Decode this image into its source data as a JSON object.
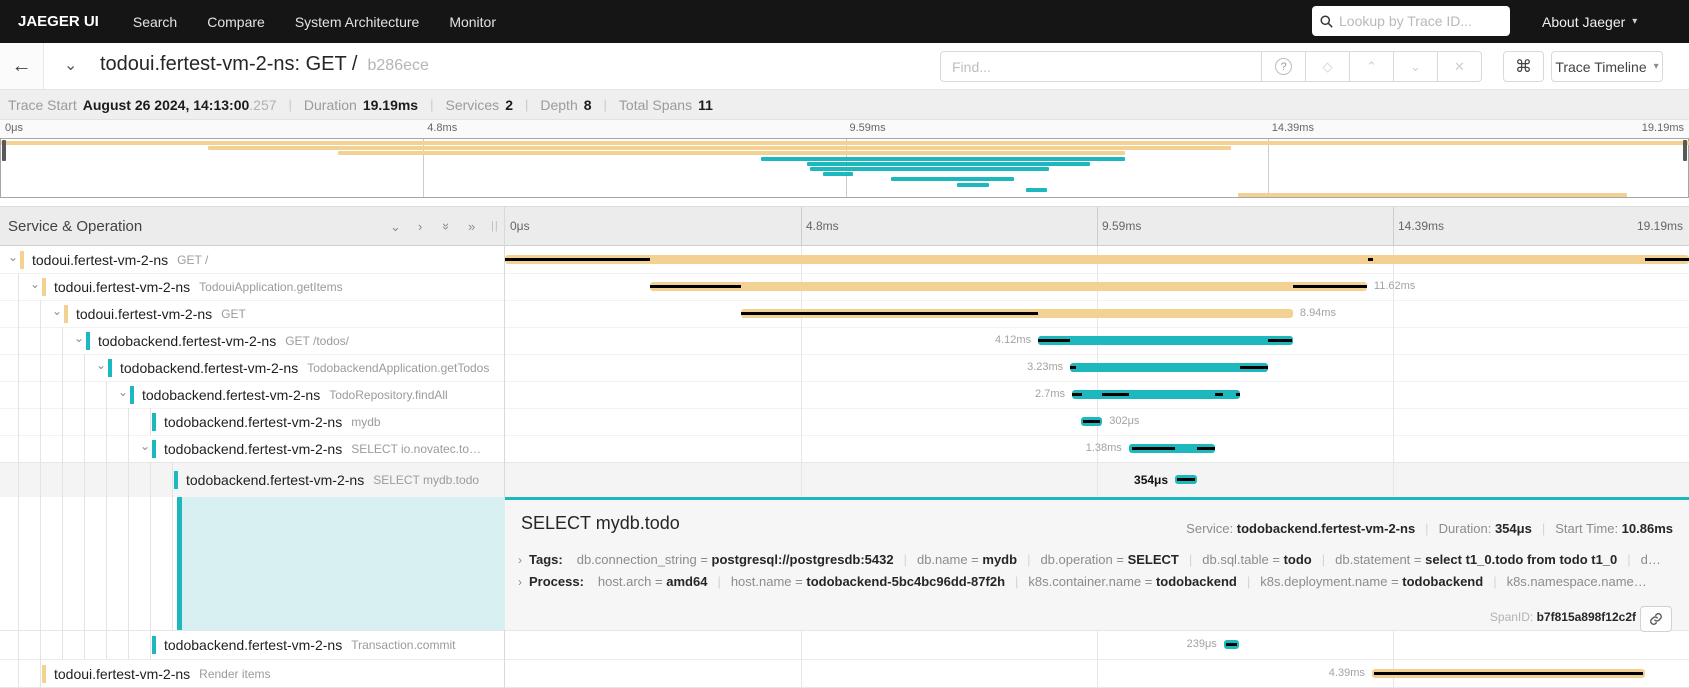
{
  "nav": {
    "brand": "JAEGER UI",
    "items": [
      "Search",
      "Compare",
      "System Architecture",
      "Monitor"
    ],
    "lookup_placeholder": "Lookup by Trace ID...",
    "about_label": "About Jaeger"
  },
  "trace_header": {
    "title": "todoui.fertest-vm-2-ns: GET /",
    "trace_id": "b286ece",
    "find_placeholder": "Find...",
    "view_selector_label": "Trace Timeline"
  },
  "summary": {
    "items": [
      {
        "label": "Trace Start",
        "value": "August 26 2024, 14:13:00",
        "suffix": ".257"
      },
      {
        "label": "Duration",
        "value": "19.19ms"
      },
      {
        "label": "Services",
        "value": "2"
      },
      {
        "label": "Depth",
        "value": "8"
      },
      {
        "label": "Total Spans",
        "value": "11"
      }
    ]
  },
  "timeline": {
    "header_label": "Service & Operation",
    "ticks": [
      "0μs",
      "4.8ms",
      "9.59ms",
      "14.39ms",
      "19.19ms"
    ],
    "duration_ms": 19.19
  },
  "colors": {
    "tan": "#F2D193",
    "teal": "#1CB8BE",
    "critical_path": "#000000",
    "selected_highlight": "#D8F0F1"
  },
  "spans": [
    {
      "service": "todoui.fertest-vm-2-ns",
      "operation": "GET /",
      "level": 0,
      "color": "tan",
      "expandable": true,
      "start_ms": 0,
      "end_ms": 19.19,
      "label": "",
      "label_side": "none",
      "selected": false,
      "critical": [
        [
          0,
          2.35
        ],
        [
          13.99,
          14.07
        ],
        [
          18.47,
          19.19
        ]
      ]
    },
    {
      "service": "todoui.fertest-vm-2-ns",
      "operation": "TodouiApplication.getItems",
      "level": 1,
      "color": "tan",
      "expandable": true,
      "start_ms": 2.35,
      "end_ms": 13.97,
      "label": "11.62ms",
      "label_side": "right",
      "selected": false,
      "critical": [
        [
          2.35,
          3.83
        ],
        [
          12.77,
          13.97
        ]
      ]
    },
    {
      "service": "todoui.fertest-vm-2-ns",
      "operation": "GET",
      "level": 2,
      "color": "tan",
      "expandable": true,
      "start_ms": 3.83,
      "end_ms": 12.77,
      "label": "8.94ms",
      "label_side": "right",
      "selected": false,
      "critical": [
        [
          3.83,
          8.64
        ]
      ]
    },
    {
      "service": "todobackend.fertest-vm-2-ns",
      "operation": "GET /todos/",
      "level": 3,
      "color": "teal",
      "expandable": true,
      "start_ms": 8.64,
      "end_ms": 12.77,
      "label": "4.12ms",
      "label_side": "left",
      "selected": false,
      "critical": [
        [
          8.64,
          9.16
        ],
        [
          12.37,
          12.76
        ]
      ]
    },
    {
      "service": "todobackend.fertest-vm-2-ns",
      "operation": "TodobackendApplication.getTodos",
      "level": 4,
      "color": "teal",
      "expandable": true,
      "start_ms": 9.16,
      "end_ms": 12.37,
      "label": "3.23ms",
      "label_side": "left",
      "selected": false,
      "critical": [
        [
          9.16,
          9.25
        ],
        [
          11.91,
          12.37
        ]
      ]
    },
    {
      "service": "todobackend.fertest-vm-2-ns",
      "operation": "TodoRepository.findAll",
      "level": 5,
      "color": "teal",
      "expandable": true,
      "start_ms": 9.19,
      "end_ms": 11.91,
      "label": "2.7ms",
      "label_side": "left",
      "selected": false,
      "critical": [
        [
          9.19,
          9.36
        ],
        [
          9.68,
          10.11
        ],
        [
          11.51,
          11.63
        ],
        [
          11.85,
          11.91
        ]
      ]
    },
    {
      "service": "todobackend.fertest-vm-2-ns",
      "operation": "mydb",
      "level": 6,
      "color": "teal",
      "expandable": false,
      "start_ms": 9.34,
      "end_ms": 9.68,
      "label": "302μs",
      "label_side": "right",
      "selected": false,
      "critical": [
        [
          9.37,
          9.65
        ]
      ]
    },
    {
      "service": "todobackend.fertest-vm-2-ns",
      "operation": "SELECT io.novatec.to…",
      "level": 6,
      "color": "teal",
      "expandable": true,
      "start_ms": 10.11,
      "end_ms": 11.51,
      "label": "1.38ms",
      "label_side": "left",
      "selected": false,
      "critical": [
        [
          10.16,
          10.86
        ],
        [
          11.22,
          11.51
        ]
      ]
    },
    {
      "service": "todobackend.fertest-vm-2-ns",
      "operation": "SELECT mydb.todo",
      "level": 7,
      "color": "teal",
      "expandable": false,
      "start_ms": 10.86,
      "end_ms": 11.22,
      "label": "354μs",
      "label_side": "left",
      "selected": true,
      "critical": [
        [
          10.89,
          11.19
        ]
      ]
    },
    {
      "service": "todobackend.fertest-vm-2-ns",
      "operation": "Transaction.commit",
      "level": 6,
      "color": "teal",
      "expandable": false,
      "start_ms": 11.65,
      "end_ms": 11.89,
      "label": "239μs",
      "label_side": "left",
      "selected": false,
      "critical": [
        [
          11.68,
          11.86
        ]
      ]
    },
    {
      "service": "todoui.fertest-vm-2-ns",
      "operation": "Render items",
      "level": 1,
      "color": "tan",
      "expandable": false,
      "start_ms": 14.05,
      "end_ms": 18.47,
      "label": "4.39ms",
      "label_side": "left",
      "selected": false,
      "critical": [
        [
          14.08,
          18.44
        ]
      ]
    }
  ],
  "detail": {
    "title": "SELECT mydb.todo",
    "meta": [
      {
        "label": "Service:",
        "value": "todobackend.fertest-vm-2-ns"
      },
      {
        "label": "Duration:",
        "value": "354μs"
      },
      {
        "label": "Start Time:",
        "value": "10.86ms"
      }
    ],
    "tags_label": "Tags:",
    "tags": [
      {
        "key": "db.connection_string",
        "value": "postgresql://postgresdb:5432"
      },
      {
        "key": "db.name",
        "value": "mydb"
      },
      {
        "key": "db.operation",
        "value": "SELECT"
      },
      {
        "key": "db.sql.table",
        "value": "todo"
      },
      {
        "key": "db.statement",
        "value": "select t1_0.todo from todo t1_0"
      },
      {
        "key": "d…",
        "value": ""
      }
    ],
    "process_label": "Process:",
    "process": [
      {
        "key": "host.arch",
        "value": "amd64"
      },
      {
        "key": "host.name",
        "value": "todobackend-5bc4bc96dd-87f2h"
      },
      {
        "key": "k8s.container.name",
        "value": "todobackend"
      },
      {
        "key": "k8s.deployment.name",
        "value": "todobackend"
      },
      {
        "key": "k8s.namespace.name…",
        "value": ""
      }
    ],
    "span_id_label": "SpanID:",
    "span_id": "b7f815a898f12c2f"
  }
}
